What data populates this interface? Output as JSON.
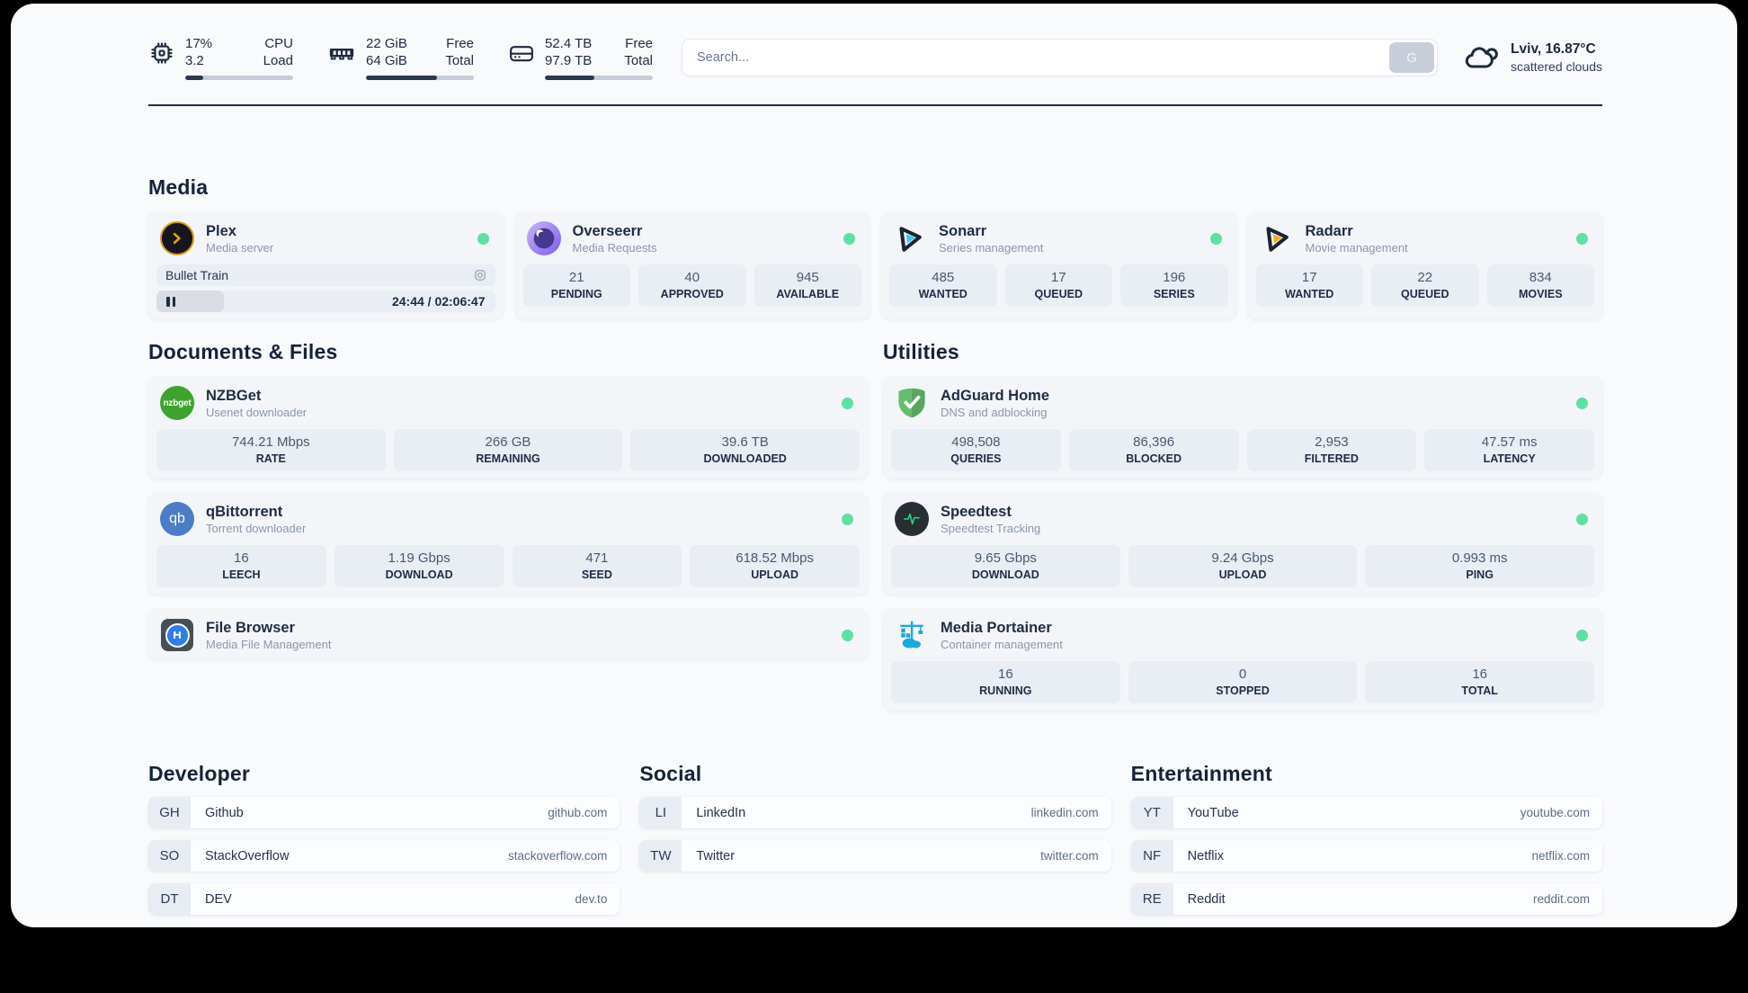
{
  "header": {
    "system_stats": [
      {
        "icon": "cpu-icon",
        "rows": [
          {
            "value": "17%",
            "label": "CPU"
          },
          {
            "value": "3.2",
            "label": "Load"
          }
        ],
        "progress_percent": 17
      },
      {
        "icon": "ram-icon",
        "rows": [
          {
            "value": "22 GiB",
            "label": "Free"
          },
          {
            "value": "64 GiB",
            "label": "Total"
          }
        ],
        "progress_percent": 66
      },
      {
        "icon": "disk-icon",
        "rows": [
          {
            "value": "52.4 TB",
            "label": "Free"
          },
          {
            "value": "97.9 TB",
            "label": "Total"
          }
        ],
        "progress_percent": 46
      }
    ],
    "search": {
      "placeholder": "Search...",
      "engine_button": "G"
    },
    "weather": {
      "icon": "cloud-icon",
      "location": "Lviv, 16.87°C",
      "condition": "scattered clouds"
    }
  },
  "sections": {
    "media": {
      "title": "Media",
      "apps": [
        {
          "icon": "plex-icon",
          "name": "Plex",
          "subtitle": "Media server",
          "status": "online",
          "now_playing": {
            "title": "Bullet Train",
            "time": "24:44 / 02:06:47",
            "progress_percent": 20
          }
        },
        {
          "icon": "overseerr-icon",
          "name": "Overseerr",
          "subtitle": "Media Requests",
          "status": "online",
          "stats": [
            {
              "value": "21",
              "label": "PENDING"
            },
            {
              "value": "40",
              "label": "APPROVED"
            },
            {
              "value": "945",
              "label": "AVAILABLE"
            }
          ]
        },
        {
          "icon": "sonarr-icon",
          "name": "Sonarr",
          "subtitle": "Series management",
          "status": "online",
          "stats": [
            {
              "value": "485",
              "label": "WANTED"
            },
            {
              "value": "17",
              "label": "QUEUED"
            },
            {
              "value": "196",
              "label": "SERIES"
            }
          ]
        },
        {
          "icon": "radarr-icon",
          "name": "Radarr",
          "subtitle": "Movie management",
          "status": "online",
          "stats": [
            {
              "value": "17",
              "label": "WANTED"
            },
            {
              "value": "22",
              "label": "QUEUED"
            },
            {
              "value": "834",
              "label": "MOVIES"
            }
          ]
        }
      ]
    },
    "documents_files": {
      "title": "Documents & Files",
      "apps": [
        {
          "icon": "nzbget-icon",
          "name": "NZBGet",
          "subtitle": "Usenet downloader",
          "status": "online",
          "stats": [
            {
              "value": "744.21 Mbps",
              "label": "RATE"
            },
            {
              "value": "266 GB",
              "label": "REMAINING"
            },
            {
              "value": "39.6 TB",
              "label": "DOWNLOADED"
            }
          ]
        },
        {
          "icon": "qbittorrent-icon",
          "name": "qBittorrent",
          "subtitle": "Torrent downloader",
          "status": "online",
          "stats": [
            {
              "value": "16",
              "label": "LEECH"
            },
            {
              "value": "1.19 Gbps",
              "label": "DOWNLOAD"
            },
            {
              "value": "471",
              "label": "SEED"
            },
            {
              "value": "618.52 Mbps",
              "label": "UPLOAD"
            }
          ]
        },
        {
          "icon": "filebrowser-icon",
          "name": "File Browser",
          "subtitle": "Media File Management",
          "status": "online",
          "stats": []
        }
      ]
    },
    "utilities": {
      "title": "Utilities",
      "apps": [
        {
          "icon": "adguard-icon",
          "name": "AdGuard Home",
          "subtitle": "DNS and adblocking",
          "status": "online",
          "stats": [
            {
              "value": "498,508",
              "label": "QUERIES"
            },
            {
              "value": "86,396",
              "label": "BLOCKED"
            },
            {
              "value": "2,953",
              "label": "FILTERED"
            },
            {
              "value": "47.57 ms",
              "label": "LATENCY"
            }
          ]
        },
        {
          "icon": "speedtest-icon",
          "name": "Speedtest",
          "subtitle": "Speedtest Tracking",
          "status": "online",
          "stats": [
            {
              "value": "9.65 Gbps",
              "label": "DOWNLOAD"
            },
            {
              "value": "9.24 Gbps",
              "label": "UPLOAD"
            },
            {
              "value": "0.993 ms",
              "label": "PING"
            }
          ]
        },
        {
          "icon": "portainer-icon",
          "name": "Media Portainer",
          "subtitle": "Container management",
          "status": "online",
          "stats": [
            {
              "value": "16",
              "label": "RUNNING"
            },
            {
              "value": "0",
              "label": "STOPPED"
            },
            {
              "value": "16",
              "label": "TOTAL"
            }
          ]
        }
      ]
    },
    "bookmarks": [
      {
        "title": "Developer",
        "links": [
          {
            "abbr": "GH",
            "name": "Github",
            "url": "github.com"
          },
          {
            "abbr": "SO",
            "name": "StackOverflow",
            "url": "stackoverflow.com"
          },
          {
            "abbr": "DT",
            "name": "DEV",
            "url": "dev.to"
          }
        ]
      },
      {
        "title": "Social",
        "links": [
          {
            "abbr": "LI",
            "name": "LinkedIn",
            "url": "linkedin.com"
          },
          {
            "abbr": "TW",
            "name": "Twitter",
            "url": "twitter.com"
          }
        ]
      },
      {
        "title": "Entertainment",
        "links": [
          {
            "abbr": "YT",
            "name": "YouTube",
            "url": "youtube.com"
          },
          {
            "abbr": "NF",
            "name": "Netflix",
            "url": "netflix.com"
          },
          {
            "abbr": "RE",
            "name": "Reddit",
            "url": "reddit.com"
          }
        ]
      }
    ]
  },
  "colors": {
    "status_online": "#5ee0a4",
    "accent_dark": "#1e2940",
    "stat_box_bg": "#e9edf4"
  }
}
